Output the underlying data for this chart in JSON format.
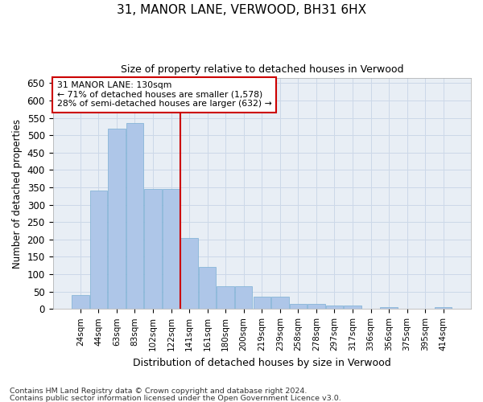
{
  "title1": "31, MANOR LANE, VERWOOD, BH31 6HX",
  "title2": "Size of property relative to detached houses in Verwood",
  "xlabel": "Distribution of detached houses by size in Verwood",
  "ylabel": "Number of detached properties",
  "footnote1": "Contains HM Land Registry data © Crown copyright and database right 2024.",
  "footnote2": "Contains public sector information licensed under the Open Government Licence v3.0.",
  "categories": [
    "24sqm",
    "44sqm",
    "63sqm",
    "83sqm",
    "102sqm",
    "122sqm",
    "141sqm",
    "161sqm",
    "180sqm",
    "200sqm",
    "219sqm",
    "239sqm",
    "258sqm",
    "278sqm",
    "297sqm",
    "317sqm",
    "336sqm",
    "356sqm",
    "375sqm",
    "395sqm",
    "414sqm"
  ],
  "values": [
    40,
    340,
    520,
    535,
    345,
    345,
    205,
    120,
    65,
    65,
    35,
    35,
    15,
    15,
    10,
    10,
    0,
    5,
    0,
    0,
    5
  ],
  "bar_color": "#aec6e8",
  "bar_edge_color": "#7aafd4",
  "vline_x": 5.5,
  "vline_color": "#cc0000",
  "annotation_line1": "31 MANOR LANE: 130sqm",
  "annotation_line2": "← 71% of detached houses are smaller (1,578)",
  "annotation_line3": "28% of semi-detached houses are larger (632) →",
  "annotation_box_facecolor": "#ffffff",
  "annotation_box_edgecolor": "#cc0000",
  "grid_color": "#ccd8e8",
  "plot_bg_color": "#e8eef5",
  "ylim": [
    0,
    665
  ],
  "yticks": [
    0,
    50,
    100,
    150,
    200,
    250,
    300,
    350,
    400,
    450,
    500,
    550,
    600,
    650
  ]
}
